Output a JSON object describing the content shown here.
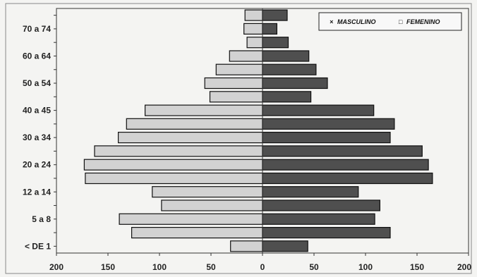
{
  "colors": {
    "masculino": "#d2d2d2",
    "femenino": "#4f4f4f",
    "frame": "#333333",
    "background": "#f4f4f2"
  },
  "legend": {
    "masculino_marker": "×",
    "masculino_label": "MASCULINO",
    "femenino_marker": "□",
    "femenino_label": "FEMENINO"
  },
  "chart_data": {
    "type": "bar",
    "orientation": "horizontal",
    "subtype": "population-pyramid",
    "title": "",
    "xlabel": "",
    "ylabel": "",
    "xlim": [
      -200,
      200
    ],
    "x_ticks": [
      "200",
      "150",
      "100",
      "50",
      "0",
      "50",
      "100",
      "150",
      "200"
    ],
    "legend_position": "top-right",
    "grid": false,
    "categories": [
      "< DE 1",
      "",
      "5 a 8",
      "",
      "12 a 14",
      "",
      "20 a 24",
      "",
      "30 a 34",
      "",
      "40 a 45",
      "",
      "50 a 54",
      "",
      "60 a 64",
      "",
      "70 a 74",
      ""
    ],
    "series": [
      {
        "name": "MASCULINO",
        "side": "left",
        "values": [
          31,
          127,
          139,
          98,
          107,
          172,
          173,
          163,
          140,
          132,
          114,
          51,
          56,
          45,
          32,
          15,
          18,
          17
        ]
      },
      {
        "name": "FEMENINO",
        "side": "right",
        "values": [
          44,
          124,
          109,
          114,
          93,
          165,
          161,
          155,
          124,
          128,
          108,
          47,
          63,
          52,
          45,
          25,
          14,
          24
        ]
      }
    ]
  }
}
